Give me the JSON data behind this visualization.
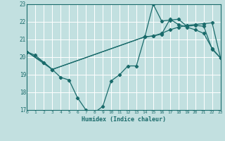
{
  "xlabel": "Humidex (Indice chaleur)",
  "xlim": [
    0,
    23
  ],
  "ylim": [
    17,
    23
  ],
  "yticks": [
    17,
    18,
    19,
    20,
    21,
    22,
    23
  ],
  "xticks": [
    0,
    1,
    2,
    3,
    4,
    5,
    6,
    7,
    8,
    9,
    10,
    11,
    12,
    13,
    14,
    15,
    16,
    17,
    18,
    19,
    20,
    21,
    22,
    23
  ],
  "background_color": "#c2e0e0",
  "grid_color": "#ffffff",
  "line_color": "#1a6b6b",
  "curve1_x": [
    0,
    1,
    2,
    3,
    4,
    5,
    6,
    7,
    8,
    9,
    10,
    11,
    12,
    13,
    14,
    15,
    16,
    17,
    18,
    19,
    20,
    21,
    22,
    23
  ],
  "curve1_y": [
    20.3,
    20.1,
    19.7,
    19.3,
    18.85,
    18.7,
    17.7,
    17.0,
    16.85,
    17.2,
    18.65,
    19.0,
    19.5,
    19.5,
    21.15,
    21.2,
    21.3,
    22.15,
    21.85,
    21.7,
    21.55,
    21.35,
    20.5,
    19.95
  ],
  "curve2_x": [
    0,
    2,
    3,
    14,
    15,
    16,
    17,
    18,
    19,
    20,
    21,
    22,
    23
  ],
  "curve2_y": [
    20.3,
    19.7,
    19.3,
    21.15,
    21.2,
    21.35,
    21.55,
    21.7,
    21.8,
    21.85,
    21.9,
    21.95,
    19.95
  ],
  "curve3_x": [
    0,
    3,
    14,
    15,
    16,
    17,
    18,
    19,
    20,
    21,
    22,
    23
  ],
  "curve3_y": [
    20.3,
    19.3,
    21.15,
    23.0,
    22.05,
    22.1,
    22.15,
    21.75,
    21.8,
    21.75,
    20.45,
    19.95
  ]
}
